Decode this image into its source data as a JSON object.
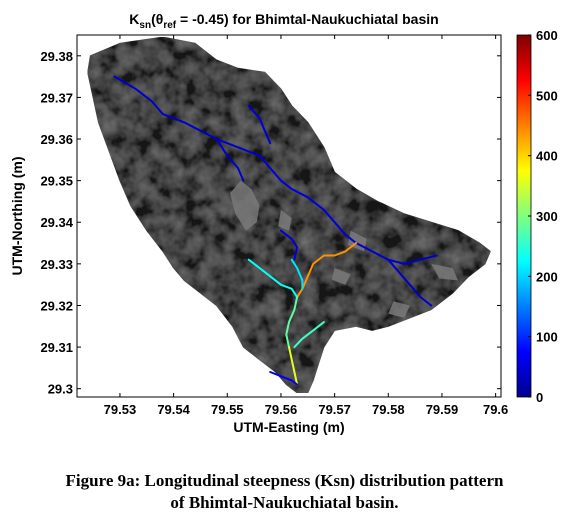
{
  "chart_data": {
    "type": "map",
    "title_parts": {
      "k": "K",
      "k_sub": "sn",
      "paren_open": "(θ",
      "theta_sub": "ref",
      "rest": " = -0.45) for Bhimtal-Naukuchiatal basin"
    },
    "xlabel": "UTM-Easting (m)",
    "ylabel": "UTM-Northing (m)",
    "xlim": [
      79.522,
      79.601
    ],
    "ylim": [
      29.298,
      29.385
    ],
    "xticks": [
      "79.53",
      "79.54",
      "79.55",
      "79.56",
      "79.57",
      "79.58",
      "79.59",
      "79.6"
    ],
    "xtick_values": [
      79.53,
      79.54,
      79.55,
      79.56,
      79.57,
      79.58,
      79.59,
      79.6
    ],
    "yticks": [
      "29.3",
      "29.31",
      "29.32",
      "29.33",
      "29.34",
      "29.35",
      "29.36",
      "29.37",
      "29.38"
    ],
    "ytick_values": [
      29.3,
      29.31,
      29.32,
      29.33,
      29.34,
      29.35,
      29.36,
      29.37,
      29.38
    ],
    "colorbar": {
      "min": 0,
      "max": 600,
      "ticks": [
        "0",
        "100",
        "200",
        "300",
        "400",
        "500",
        "600"
      ],
      "tick_values": [
        0,
        100,
        200,
        300,
        400,
        500,
        600
      ],
      "colormap": "jet"
    },
    "basin_outline": [
      [
        79.5245,
        29.38
      ],
      [
        79.53,
        29.383
      ],
      [
        79.538,
        29.3845
      ],
      [
        79.544,
        29.383
      ],
      [
        79.548,
        29.379
      ],
      [
        79.552,
        29.377
      ],
      [
        79.557,
        29.376
      ],
      [
        79.56,
        29.372
      ],
      [
        79.562,
        29.368
      ],
      [
        79.565,
        29.364
      ],
      [
        79.568,
        29.358
      ],
      [
        79.57,
        29.352
      ],
      [
        79.574,
        29.348
      ],
      [
        79.578,
        29.345
      ],
      [
        79.583,
        29.342
      ],
      [
        79.588,
        29.34
      ],
      [
        79.593,
        29.338
      ],
      [
        79.597,
        29.335
      ],
      [
        79.599,
        29.333
      ],
      [
        79.598,
        29.33
      ],
      [
        79.595,
        29.327
      ],
      [
        79.592,
        29.323
      ],
      [
        79.588,
        29.319
      ],
      [
        79.584,
        29.317
      ],
      [
        79.58,
        29.315
      ],
      [
        79.577,
        29.314
      ],
      [
        79.574,
        29.315
      ],
      [
        79.57,
        29.314
      ],
      [
        79.568,
        29.31
      ],
      [
        79.567,
        29.306
      ],
      [
        79.566,
        29.302
      ],
      [
        79.565,
        29.299
      ],
      [
        79.563,
        29.299
      ],
      [
        79.561,
        29.301
      ],
      [
        79.559,
        29.304
      ],
      [
        79.556,
        29.307
      ],
      [
        79.553,
        29.31
      ],
      [
        79.551,
        29.315
      ],
      [
        79.548,
        29.32
      ],
      [
        79.545,
        29.323
      ],
      [
        79.542,
        29.326
      ],
      [
        79.54,
        29.329
      ],
      [
        79.538,
        29.333
      ],
      [
        79.535,
        29.338
      ],
      [
        79.532,
        29.344
      ],
      [
        79.53,
        29.35
      ],
      [
        79.528,
        29.357
      ],
      [
        79.526,
        29.364
      ],
      [
        79.525,
        29.37
      ],
      [
        79.524,
        29.376
      ]
    ],
    "highlight_patches": [
      [
        [
          79.5525,
          29.35
        ],
        [
          79.5545,
          29.348
        ],
        [
          79.556,
          29.344
        ],
        [
          79.5555,
          29.34
        ],
        [
          79.5535,
          29.338
        ],
        [
          79.5515,
          29.342
        ],
        [
          79.5505,
          29.347
        ]
      ],
      [
        [
          79.56,
          29.343
        ],
        [
          79.562,
          29.341
        ],
        [
          79.5615,
          29.338
        ],
        [
          79.5595,
          29.339
        ]
      ],
      [
        [
          79.573,
          29.338
        ],
        [
          79.576,
          29.336
        ],
        [
          79.5755,
          29.333
        ],
        [
          79.5725,
          29.3345
        ]
      ],
      [
        [
          79.581,
          29.321
        ],
        [
          79.584,
          29.32
        ],
        [
          79.583,
          29.317
        ],
        [
          79.58,
          29.318
        ]
      ],
      [
        [
          79.588,
          29.33
        ],
        [
          79.592,
          29.329
        ],
        [
          79.593,
          29.326
        ],
        [
          79.5895,
          29.3265
        ]
      ],
      [
        [
          79.57,
          29.329
        ],
        [
          79.573,
          29.3275
        ],
        [
          79.572,
          29.325
        ],
        [
          79.5695,
          29.3262
        ]
      ]
    ],
    "streams": [
      {
        "ksn": 40,
        "points": [
          [
            79.529,
            29.375
          ],
          [
            79.533,
            29.372
          ],
          [
            79.536,
            29.369
          ],
          [
            79.538,
            29.366
          ],
          [
            79.542,
            29.364
          ],
          [
            79.545,
            29.362
          ],
          [
            79.548,
            29.36
          ],
          [
            79.552,
            29.358
          ],
          [
            79.556,
            29.356
          ]
        ]
      },
      {
        "ksn": 45,
        "points": [
          [
            79.554,
            29.368
          ],
          [
            79.556,
            29.365
          ],
          [
            79.557,
            29.362
          ],
          [
            79.558,
            29.359
          ]
        ]
      },
      {
        "ksn": 40,
        "points": [
          [
            79.548,
            29.36
          ],
          [
            79.55,
            29.356
          ],
          [
            79.552,
            29.353
          ],
          [
            79.553,
            29.35
          ]
        ]
      },
      {
        "ksn": 50,
        "points": [
          [
            79.556,
            29.356
          ],
          [
            79.558,
            29.353
          ],
          [
            79.56,
            29.35
          ],
          [
            79.562,
            29.348
          ],
          [
            79.565,
            29.346
          ],
          [
            79.568,
            29.343
          ],
          [
            79.57,
            29.34
          ],
          [
            79.572,
            29.337
          ],
          [
            79.574,
            29.335
          ]
        ]
      },
      {
        "ksn": 40,
        "points": [
          [
            79.574,
            29.335
          ],
          [
            79.577,
            29.333
          ],
          [
            79.58,
            29.331
          ],
          [
            79.582,
            29.328
          ],
          [
            79.584,
            29.325
          ],
          [
            79.586,
            29.322
          ],
          [
            79.588,
            29.32
          ]
        ]
      },
      {
        "ksn": 40,
        "points": [
          [
            79.58,
            29.331
          ],
          [
            79.583,
            29.33
          ],
          [
            79.586,
            29.331
          ],
          [
            79.589,
            29.332
          ]
        ]
      },
      {
        "ksn": 45,
        "points": [
          [
            79.56,
            29.338
          ],
          [
            79.562,
            29.336
          ],
          [
            79.563,
            29.334
          ],
          [
            79.5625,
            29.331
          ]
        ]
      },
      {
        "ksn": 440,
        "points": [
          [
            79.574,
            29.335
          ],
          [
            79.572,
            29.333
          ],
          [
            79.57,
            29.332
          ],
          [
            79.568,
            29.332
          ],
          [
            79.566,
            29.33
          ],
          [
            79.565,
            29.327
          ],
          [
            79.564,
            29.324
          ],
          [
            79.563,
            29.322
          ]
        ]
      },
      {
        "ksn": 230,
        "points": [
          [
            79.554,
            29.331
          ],
          [
            79.556,
            29.329
          ],
          [
            79.558,
            29.327
          ],
          [
            79.56,
            29.325
          ],
          [
            79.562,
            29.324
          ],
          [
            79.563,
            29.322
          ]
        ]
      },
      {
        "ksn": 210,
        "points": [
          [
            79.562,
            29.331
          ],
          [
            79.563,
            29.329
          ],
          [
            79.564,
            29.326
          ],
          [
            79.564,
            29.324
          ]
        ]
      },
      {
        "ksn": 280,
        "points": [
          [
            79.563,
            29.322
          ],
          [
            79.5625,
            29.319
          ],
          [
            79.5615,
            29.316
          ],
          [
            79.561,
            29.313
          ],
          [
            79.5615,
            29.31
          ]
        ]
      },
      {
        "ksn": 260,
        "points": [
          [
            79.568,
            29.316
          ],
          [
            79.566,
            29.314
          ],
          [
            79.564,
            29.312
          ],
          [
            79.5625,
            29.31
          ]
        ]
      },
      {
        "ksn": 360,
        "points": [
          [
            79.5615,
            29.31
          ],
          [
            79.562,
            29.307
          ],
          [
            79.5625,
            29.304
          ],
          [
            79.563,
            29.301
          ]
        ]
      },
      {
        "ksn": 70,
        "points": [
          [
            79.558,
            29.304
          ],
          [
            79.56,
            29.303
          ],
          [
            79.562,
            29.302
          ],
          [
            79.563,
            29.301
          ]
        ]
      }
    ]
  },
  "caption": {
    "line1": "Figure 9a: Longitudinal steepness (Ksn) distribution pattern",
    "line2": "of Bhimtal-Naukuchiatal basin."
  }
}
